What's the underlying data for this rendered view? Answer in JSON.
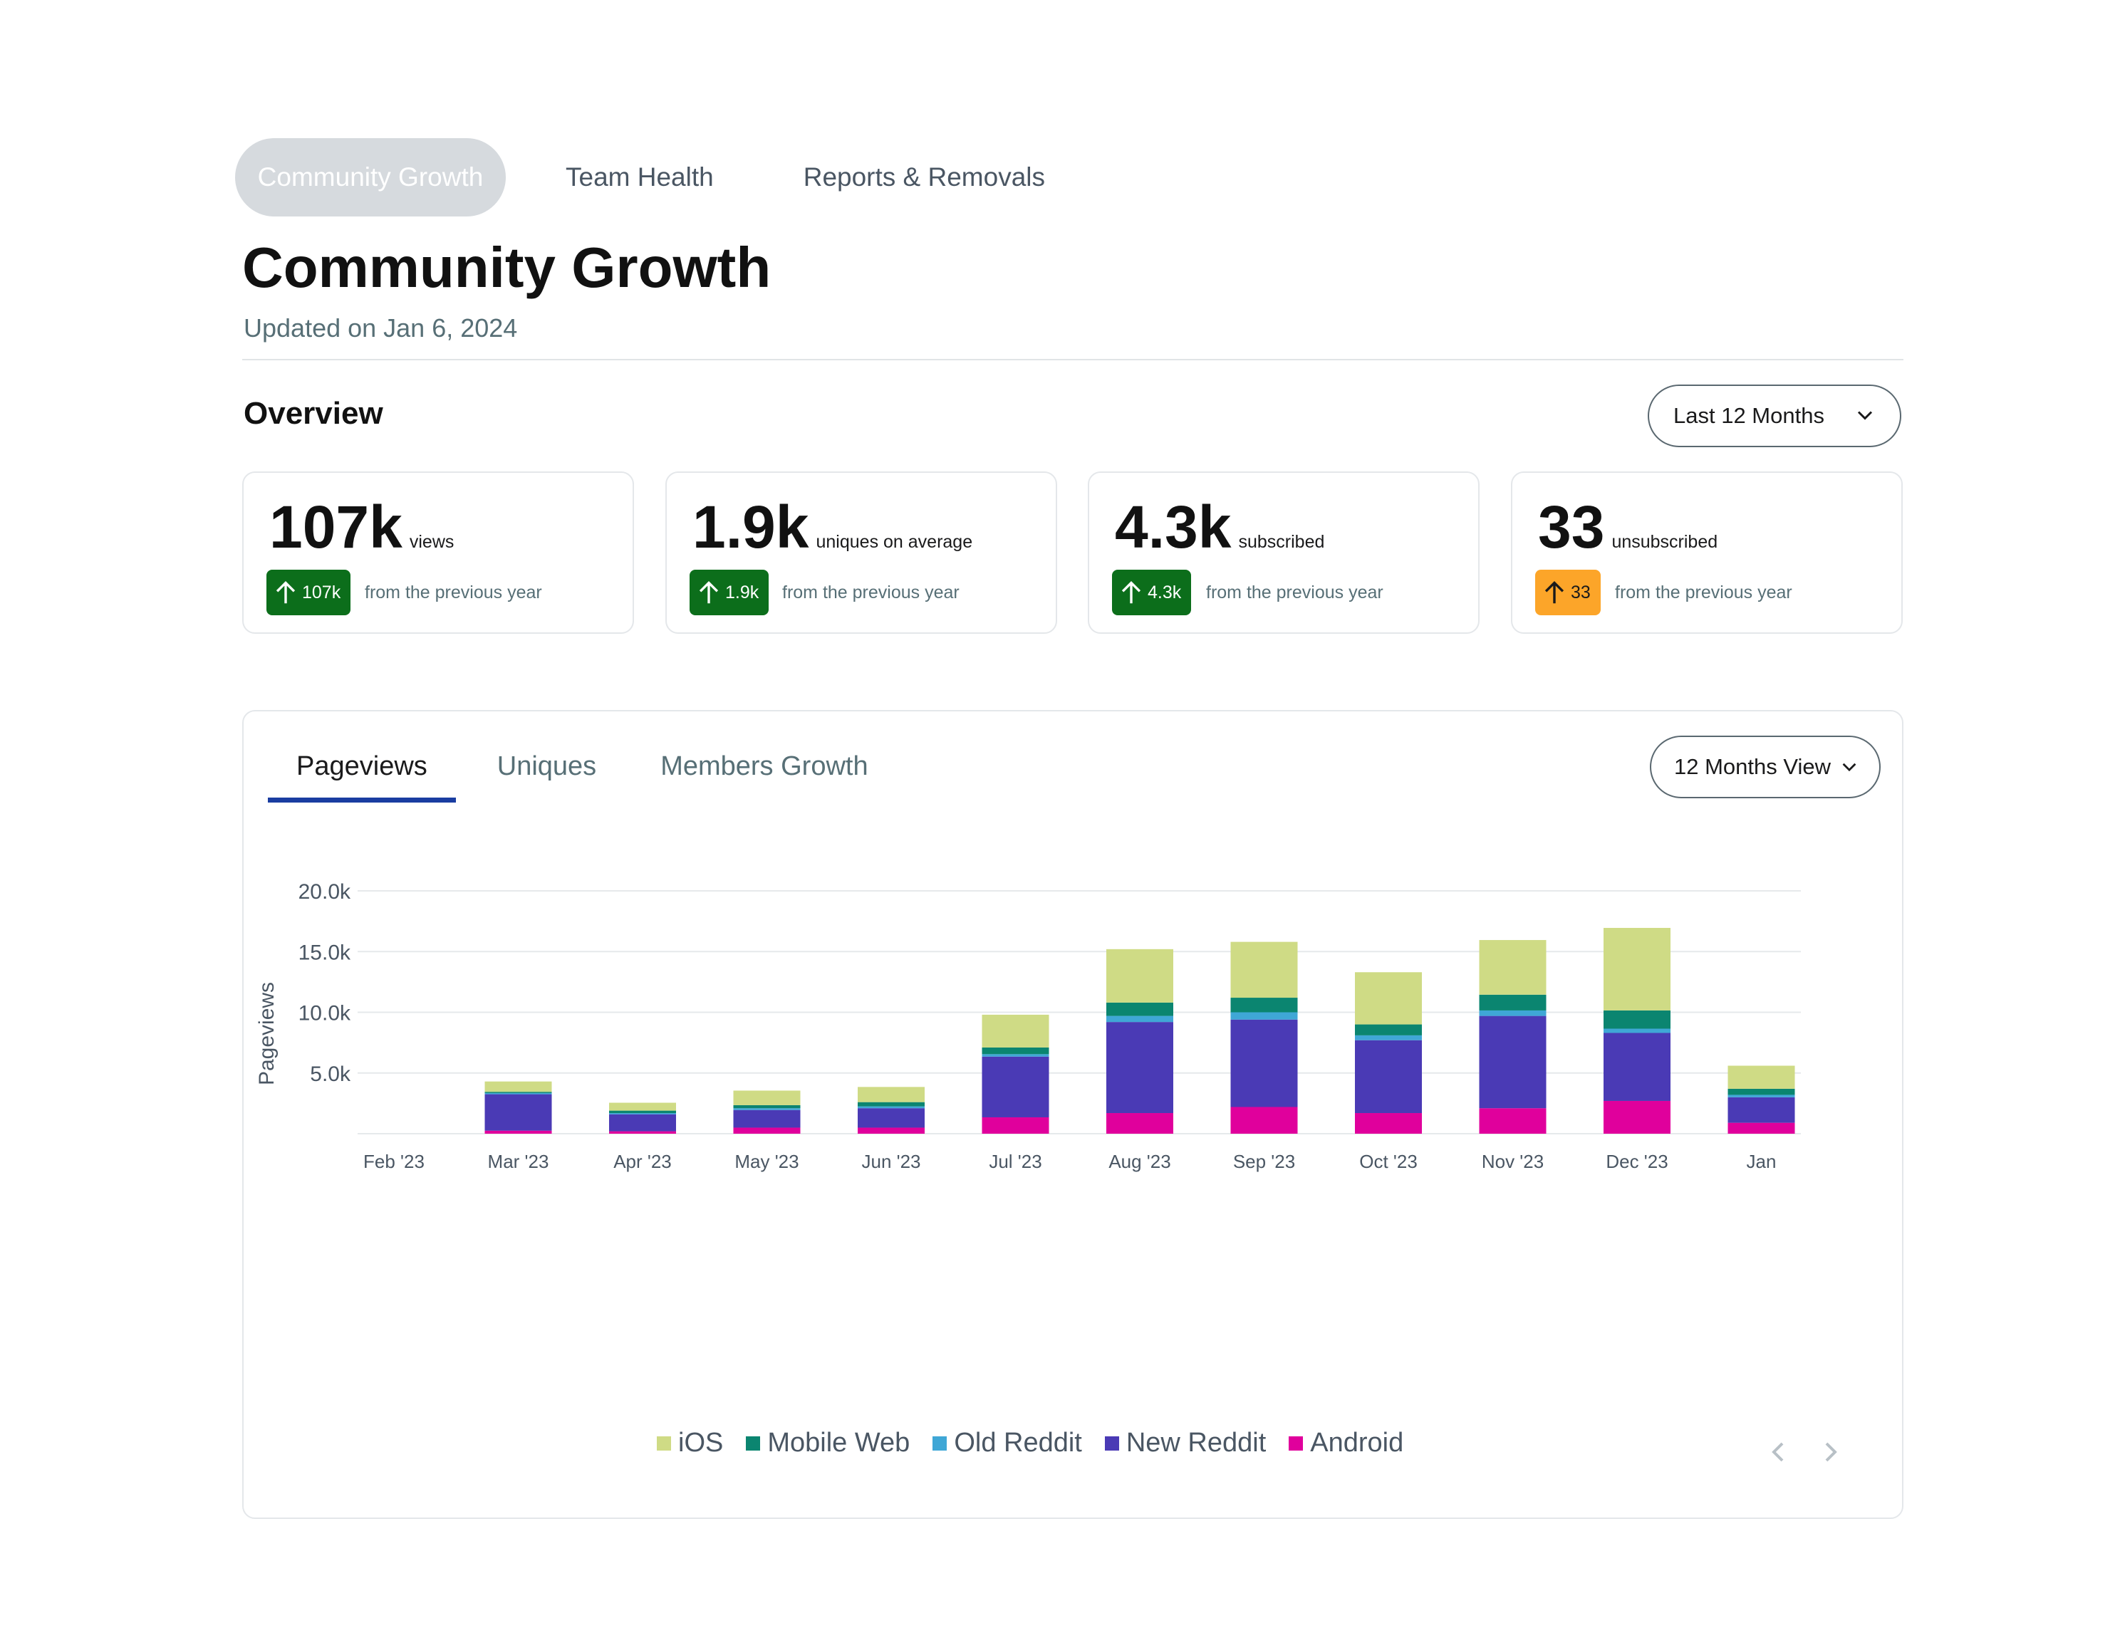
{
  "tabs": [
    {
      "label": "Community Growth",
      "active": true
    },
    {
      "label": "Team Health",
      "active": false
    },
    {
      "label": "Reports & Removals",
      "active": false
    }
  ],
  "header": {
    "title": "Community Growth",
    "updated": "Updated on Jan 6, 2024"
  },
  "overview": {
    "title": "Overview",
    "range_select": "Last 12 Months"
  },
  "stats": [
    {
      "value": "107k",
      "unit": "views",
      "delta": "107k",
      "from": "from the previous year",
      "color": "#0c6e1b"
    },
    {
      "value": "1.9k",
      "unit": "uniques on average",
      "delta": "1.9k",
      "from": "from the previous year",
      "color": "#0c6e1b"
    },
    {
      "value": "4.3k",
      "unit": "subscribed",
      "delta": "4.3k",
      "from": "from the previous year",
      "color": "#0c6e1b"
    },
    {
      "value": "33",
      "unit": "unsubscribed",
      "delta": "33",
      "from": "from the previous year",
      "color": "#fca529"
    }
  ],
  "chart_panel": {
    "tabs": [
      "Pageviews",
      "Uniques",
      "Members Growth"
    ],
    "active_tab": "Pageviews",
    "view_select": "12 Months View"
  },
  "chart_data": {
    "type": "bar",
    "stacked": true,
    "categories": [
      "Feb '23",
      "Mar '23",
      "Apr '23",
      "May '23",
      "Jun '23",
      "Jul '23",
      "Aug '23",
      "Sep '23",
      "Oct '23",
      "Nov '23",
      "Dec '23",
      "Jan"
    ],
    "series": [
      {
        "name": "Android",
        "color": "#e0009c",
        "values": [
          0,
          250,
          200,
          500,
          500,
          1350,
          1700,
          2200,
          1700,
          2100,
          2700,
          900
        ]
      },
      {
        "name": "New Reddit",
        "color": "#4a3ab5",
        "values": [
          0,
          3000,
          1400,
          1450,
          1600,
          5000,
          7500,
          7200,
          6000,
          7600,
          5600,
          2100
        ]
      },
      {
        "name": "Old Reddit",
        "color": "#3fa7d6",
        "values": [
          0,
          100,
          100,
          150,
          150,
          200,
          500,
          600,
          400,
          450,
          350,
          200
        ]
      },
      {
        "name": "Mobile Web",
        "color": "#0b8570",
        "values": [
          0,
          100,
          200,
          250,
          350,
          550,
          1100,
          1200,
          900,
          1300,
          1500,
          500
        ]
      },
      {
        "name": "iOS",
        "color": "#cfdb85",
        "values": [
          0,
          850,
          650,
          1200,
          1250,
          2700,
          4400,
          4600,
          4300,
          4500,
          6800,
          1900
        ]
      }
    ],
    "legend_order": [
      "iOS",
      "Mobile Web",
      "Old Reddit",
      "New Reddit",
      "Android"
    ],
    "ylabel": "Pageviews",
    "ylim": [
      0,
      20000
    ],
    "yticks": [
      "5.0k",
      "10.0k",
      "15.0k",
      "20.0k"
    ],
    "ytick_values": [
      5000,
      10000,
      15000,
      20000
    ],
    "grid": true,
    "legend_position": "bottom"
  },
  "icons": {
    "arrow": "arrow-up-icon",
    "chevron": "chevron-down-icon",
    "prev": "chevron-left-icon",
    "next": "chevron-right-icon"
  }
}
